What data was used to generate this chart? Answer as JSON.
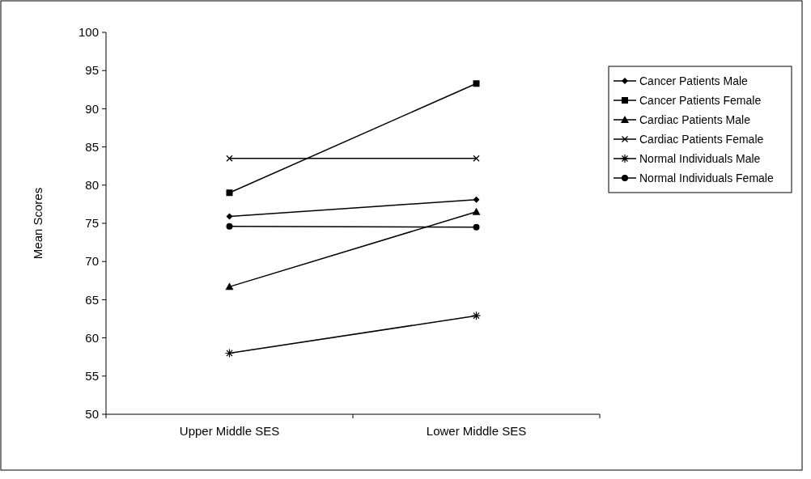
{
  "chart_data": {
    "type": "line",
    "ylabel": "Mean Scores",
    "categories": [
      "Upper Middle SES",
      "Lower Middle SES"
    ],
    "ylim": [
      50,
      100
    ],
    "yticks": [
      50,
      55,
      60,
      65,
      70,
      75,
      80,
      85,
      90,
      95,
      100
    ],
    "grid": false,
    "legend": "right",
    "series": [
      {
        "name": "Cancer Patients Male",
        "color": "#000000",
        "marker": "diamond",
        "values": [
          75.9,
          78.1
        ]
      },
      {
        "name": "Cancer Patients Female",
        "color": "#000000",
        "marker": "square",
        "values": [
          79,
          93.3
        ]
      },
      {
        "name": "Cardiac Patients Male",
        "color": "#000000",
        "marker": "triangle",
        "values": [
          66.7,
          76.5
        ]
      },
      {
        "name": "Cardiac Patients Female",
        "color": "#000000",
        "marker": "cross",
        "values": [
          83.5,
          83.5
        ]
      },
      {
        "name": "Normal Individuals Male",
        "color": "#000000",
        "marker": "star",
        "values": [
          58,
          62.9
        ]
      },
      {
        "name": "Normal Individuals Female",
        "color": "#000000",
        "marker": "circle",
        "values": [
          74.6,
          74.5
        ]
      }
    ]
  }
}
